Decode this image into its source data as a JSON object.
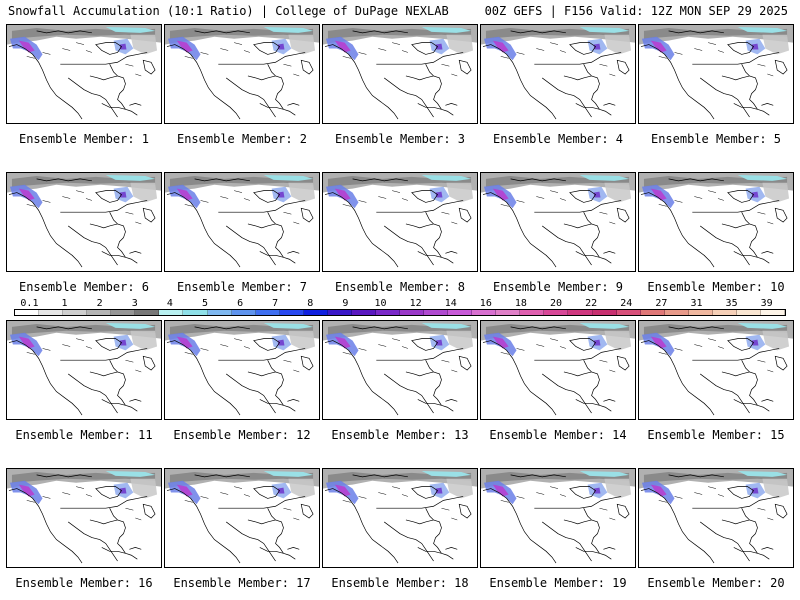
{
  "header": {
    "title_left": "Snowfall Accumulation (10:1 Ratio) | College of DuPage NEXLAB",
    "title_right": "00Z GEFS | F156 Valid: 12Z MON SEP 29 2025"
  },
  "panels": [
    {
      "label": "Ensemble Member: 1"
    },
    {
      "label": "Ensemble Member: 2"
    },
    {
      "label": "Ensemble Member: 3"
    },
    {
      "label": "Ensemble Member: 4"
    },
    {
      "label": "Ensemble Member: 5"
    },
    {
      "label": "Ensemble Member: 6"
    },
    {
      "label": "Ensemble Member: 7"
    },
    {
      "label": "Ensemble Member: 8"
    },
    {
      "label": "Ensemble Member: 9"
    },
    {
      "label": "Ensemble Member: 10"
    },
    {
      "label": "Ensemble Member: 11"
    },
    {
      "label": "Ensemble Member: 12"
    },
    {
      "label": "Ensemble Member: 13"
    },
    {
      "label": "Ensemble Member: 14"
    },
    {
      "label": "Ensemble Member: 15"
    },
    {
      "label": "Ensemble Member: 16"
    },
    {
      "label": "Ensemble Member: 17"
    },
    {
      "label": "Ensemble Member: 18"
    },
    {
      "label": "Ensemble Member: 19"
    },
    {
      "label": "Ensemble Member: 20"
    }
  ],
  "color_scale": {
    "labels": [
      "0.1",
      "1",
      "2",
      "3",
      "4",
      "5",
      "6",
      "7",
      "8",
      "9",
      "10",
      "12",
      "14",
      "16",
      "18",
      "20",
      "22",
      "24",
      "27",
      "31",
      "35",
      "39"
    ],
    "colors": [
      "#ffffff",
      "#e6e6e6",
      "#cfcfcf",
      "#b4b4b4",
      "#969696",
      "#787878",
      "#b8f0f0",
      "#8fe0e8",
      "#7fb8f0",
      "#5f94ee",
      "#3f6ff0",
      "#2848f0",
      "#1020e0",
      "#3a18c8",
      "#5a18c0",
      "#7a28c8",
      "#9a38c8",
      "#b04ad0",
      "#c85ad8",
      "#d870d0",
      "#e080c8",
      "#e060b0",
      "#d84898",
      "#d03880",
      "#c83070",
      "#d8507a",
      "#e07878",
      "#e89a8a",
      "#f0b8a0",
      "#f6d0b8",
      "#fae6d2",
      "#fdf4e8"
    ]
  }
}
